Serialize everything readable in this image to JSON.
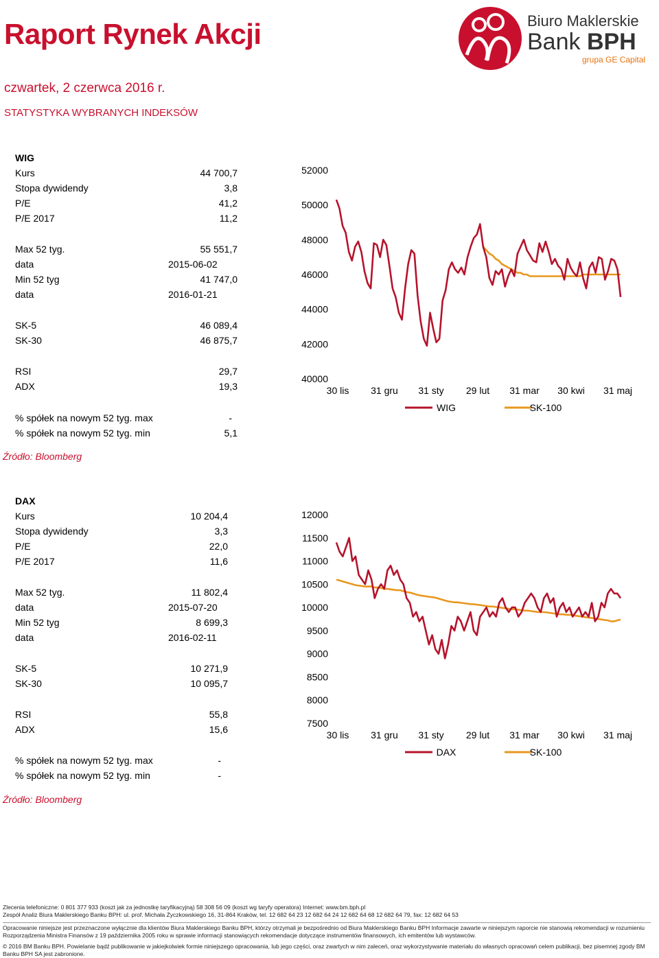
{
  "header": {
    "title": "Raport Rynek Akcji",
    "date": "czwartek, 2 czerwca 2016 r.",
    "section": "STATYSTYKA WYBRANYCH INDEKSÓW",
    "logo_line1": "Biuro Maklerskie",
    "logo_line2a": "Bank ",
    "logo_line2b": "BPH",
    "logo_line3": "grupa GE Capital",
    "accent_color": "#c8102e",
    "orange_color": "#e8971e"
  },
  "wig": {
    "name": "WIG",
    "rows": [
      {
        "label": "Kurs",
        "value": "44 700,7"
      },
      {
        "label": "Stopa dywidendy",
        "value": "3,8"
      },
      {
        "label": "P/E",
        "value": "41,2"
      },
      {
        "label": "P/E 2017",
        "value": "11,2"
      },
      {
        "label": "Max 52 tyg.",
        "value": "55 551,7"
      },
      {
        "label": "data",
        "value": "2015-06-02"
      },
      {
        "label": "Min 52 tyg",
        "value": "41 747,0"
      },
      {
        "label": "data",
        "value": "2016-01-21"
      },
      {
        "label": "SK-5",
        "value": "46 089,4"
      },
      {
        "label": "SK-30",
        "value": "46 875,7"
      },
      {
        "label": "RSI",
        "value": "29,7"
      },
      {
        "label": "ADX",
        "value": "19,3"
      },
      {
        "label": "% spółek na nowym 52 tyg. max",
        "value": "-"
      },
      {
        "label": "% spółek na nowym 52 tyg. min",
        "value": "5,1"
      }
    ],
    "source": "Źródło: Bloomberg"
  },
  "dax": {
    "name": "DAX",
    "rows": [
      {
        "label": "Kurs",
        "value": "10 204,4"
      },
      {
        "label": "Stopa dywidendy",
        "value": "3,3"
      },
      {
        "label": "P/E",
        "value": "22,0"
      },
      {
        "label": "P/E 2017",
        "value": "11,6"
      },
      {
        "label": "Max 52 tyg.",
        "value": "11 802,4"
      },
      {
        "label": "data",
        "value": "2015-07-20"
      },
      {
        "label": "Min 52 tyg",
        "value": "8 699,3"
      },
      {
        "label": "data",
        "value": "2016-02-11"
      },
      {
        "label": "SK-5",
        "value": "10 271,9"
      },
      {
        "label": "SK-30",
        "value": "10 095,7"
      },
      {
        "label": "RSI",
        "value": "55,8"
      },
      {
        "label": "ADX",
        "value": "15,6"
      },
      {
        "label": "% spółek na nowym 52 tyg. max",
        "value": "-"
      },
      {
        "label": "% spółek na nowym 52 tyg. min",
        "value": "-"
      }
    ],
    "source": "Źródło: Bloomberg"
  },
  "chart_data": [
    {
      "type": "line",
      "ylim": [
        40000,
        52000
      ],
      "y_ticks": [
        "52000",
        "50000",
        "48000",
        "46000",
        "44000",
        "42000",
        "40000"
      ],
      "x_ticks": [
        "30 lis",
        "31 gru",
        "31 sty",
        "29 lut",
        "31 mar",
        "30 kwi",
        "31 maj"
      ],
      "legend_position": "bottom",
      "series": [
        {
          "name": "WIG",
          "color": "#b5132b",
          "values": [
            50300,
            49800,
            48800,
            48400,
            47300,
            46800,
            47600,
            47900,
            47300,
            46200,
            45500,
            45200,
            47800,
            47700,
            47000,
            48000,
            47700,
            46500,
            45200,
            44700,
            43800,
            43400,
            45200,
            46600,
            47400,
            47200,
            44800,
            43300,
            42300,
            41900,
            43800,
            42900,
            42100,
            42300,
            44500,
            45100,
            46300,
            46700,
            46300,
            46100,
            46400,
            46000,
            47000,
            47600,
            48100,
            48300,
            48900,
            47600,
            47000,
            45800,
            45400,
            46200,
            46000,
            46300,
            45300,
            45900,
            46300,
            45900,
            47200,
            47600,
            48000,
            47400,
            47100,
            46800,
            46700,
            47800,
            47300,
            47900,
            47300,
            46600,
            46900,
            46500,
            46300,
            45700,
            46900,
            46400,
            46100,
            45900,
            46700,
            45800,
            45200,
            46400,
            46700,
            46100,
            47000,
            46900,
            45700,
            46200,
            46900,
            46800,
            46300,
            44700
          ]
        },
        {
          "name": "SK-100",
          "color": "#e8971e",
          "values": [
            null,
            null,
            null,
            null,
            null,
            null,
            null,
            null,
            null,
            null,
            null,
            null,
            null,
            null,
            null,
            null,
            null,
            null,
            null,
            null,
            null,
            null,
            null,
            null,
            null,
            null,
            null,
            null,
            null,
            null,
            null,
            null,
            null,
            null,
            null,
            null,
            null,
            null,
            null,
            null,
            null,
            null,
            null,
            null,
            null,
            null,
            null,
            47600,
            47400,
            47200,
            47100,
            46900,
            46800,
            46600,
            46500,
            46400,
            46300,
            46200,
            46100,
            46100,
            46000,
            46000,
            45900,
            45900,
            45900,
            45900,
            45900,
            45900,
            45900,
            45900,
            45900,
            45900,
            45900,
            45900,
            45900,
            45900,
            45900,
            45900,
            45900,
            46000,
            46000,
            46000,
            46000,
            46000,
            46000,
            46000,
            46000,
            46000,
            46000,
            46000,
            46000,
            46000
          ]
        }
      ]
    },
    {
      "type": "line",
      "ylim": [
        7500,
        12000
      ],
      "y_ticks": [
        "12000",
        "11500",
        "11000",
        "10500",
        "10000",
        "9500",
        "9000",
        "8500",
        "8000",
        "7500"
      ],
      "x_ticks": [
        "30 lis",
        "31 gru",
        "31 sty",
        "29 lut",
        "31 mar",
        "30 kwi",
        "31 maj"
      ],
      "legend_position": "bottom",
      "series": [
        {
          "name": "DAX",
          "color": "#b5132b",
          "values": [
            11400,
            11200,
            11100,
            11300,
            11500,
            11000,
            11100,
            10700,
            10600,
            10500,
            10800,
            10600,
            10200,
            10400,
            10500,
            10400,
            10800,
            10900,
            10700,
            10800,
            10600,
            10500,
            10200,
            10100,
            9800,
            9900,
            9700,
            9800,
            9500,
            9200,
            9400,
            9100,
            9000,
            9300,
            8900,
            9200,
            9600,
            9500,
            9800,
            9700,
            9500,
            9700,
            9900,
            9500,
            9400,
            9800,
            9900,
            10000,
            9800,
            9900,
            9800,
            10100,
            10200,
            10000,
            9900,
            10000,
            10000,
            9800,
            9900,
            10100,
            10200,
            10300,
            10200,
            10000,
            9900,
            10200,
            10300,
            10100,
            10200,
            9800,
            10000,
            10100,
            9900,
            10000,
            9800,
            9900,
            10000,
            9800,
            9900,
            9800,
            10100,
            9700,
            9800,
            10100,
            10000,
            10300,
            10400,
            10300,
            10300,
            10200
          ]
        },
        {
          "name": "SK-100",
          "color": "#e8971e",
          "values": [
            10600,
            10580,
            10560,
            10540,
            10520,
            10500,
            10480,
            10470,
            10460,
            10450,
            10450,
            10450,
            10430,
            10430,
            10420,
            10400,
            10400,
            10390,
            10380,
            10370,
            10370,
            10350,
            10330,
            10320,
            10300,
            10280,
            10260,
            10250,
            10240,
            10230,
            10220,
            10210,
            10190,
            10170,
            10150,
            10130,
            10120,
            10110,
            10110,
            10100,
            10090,
            10080,
            10070,
            10070,
            10060,
            10050,
            10040,
            10030,
            10020,
            10020,
            10010,
            10000,
            9990,
            9980,
            9970,
            9960,
            9960,
            9950,
            9940,
            9930,
            9930,
            9920,
            9910,
            9900,
            9900,
            9900,
            9890,
            9880,
            9870,
            9860,
            9850,
            9850,
            9840,
            9840,
            9830,
            9820,
            9810,
            9800,
            9790,
            9780,
            9770,
            9760,
            9750,
            9740,
            9730,
            9720,
            9700,
            9700,
            9720,
            9740
          ]
        }
      ]
    }
  ],
  "footer": {
    "line1": "Zlecenia telefoniczne: 0  801  377  933 (koszt jak za jednostkę taryfikacyjną)   58 308 56 09 (koszt wg taryfy operatora)   Internet: www.bm.bph.pl",
    "line2": "Zespół Analiz Biura Maklerskiego Banku BPH: ul. prof. Michała Życzkowskiego 16, 31-864 Kraków,  tel. 12 682 64 23   12 682 64 24   12  682 64 68   12 682 64 79,   fax: 12  682 64 53",
    "line3": "Opracowanie niniejsze jest przeznaczone wyłącznie dla klientów Biura Maklerskiego Banku BPH, którzy otrzymali je bezpośrednio od Biura Maklerskiego Banku BPH Informacje zawarte w niniejszym raporcie nie stanowią rekomendacji w rozumieniu",
    "line4": "Rozporządzenia Ministra Finansów z 19 października 2005 roku w sprawie informacji stanowiących rekomendacje dotyczące instrumentów finansowych, ich emitentów lub wystawców.",
    "line5": "© 2016 BM Banku BPH. Powielanie bądź publikowanie w jakiejkolwiek formie niniejszego opracowania, lub jego części, oraz zwartych w nim zaleceń, oraz wykorzystywanie materiału do własnych opracowań celem publikacji, bez pisemnej zgody BM",
    "line6": "Banku BPH SA jest zabronione."
  }
}
